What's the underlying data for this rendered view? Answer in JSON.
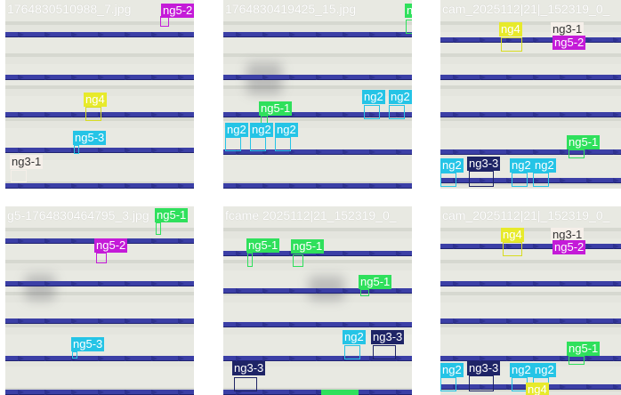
{
  "tiles": [
    {
      "filename": "1764830510988_7.jpg",
      "labels": [
        "ng5-2",
        "ng4",
        "ng5-3",
        "ng3-1"
      ]
    },
    {
      "filename": "1764830419425_15.jpg",
      "labels": [
        "ng2",
        "ng2",
        "ng5-1",
        "ng2",
        "ng2",
        "ng2"
      ]
    },
    {
      "filename": "cam_2025112|21|_152319_0_",
      "labels": [
        "ng4",
        "ng3-1",
        "ng5-2",
        "ng5-1",
        "ng2",
        "ng3-3",
        "ng2",
        "ng2"
      ]
    },
    {
      "filename": "g5-1764830464795_3.jpg",
      "labels": [
        "ng5-1",
        "ng5-2",
        "ng5-3"
      ]
    },
    {
      "filename": "fcame 2025112|21_152319_0_",
      "labels": [
        "ng5-1",
        "ng5-1",
        "ng5-1",
        "ng2",
        "ng3-3",
        "ng3-3"
      ]
    },
    {
      "filename": "cam_2025112|21|_152319_0_",
      "labels": [
        "ng4",
        "ng3-1",
        "ng5-2",
        "ng5-1",
        "ng2",
        "ng3-3",
        "ng2",
        "ng2",
        "ng4"
      ]
    }
  ],
  "colors": {
    "yellow": "#e7ea2b",
    "green": "#2fe05c",
    "cyan": "#25c4e6",
    "purple": "#c41bd8",
    "white": "#f5efe9",
    "navy": "#1e2466",
    "wire": "#3b3fa6"
  }
}
